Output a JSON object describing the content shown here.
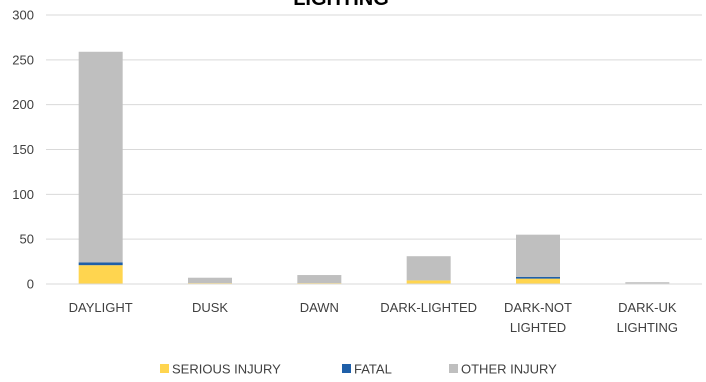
{
  "chart_data": {
    "type": "bar",
    "stacked": true,
    "title": "LIGHTING",
    "categories": [
      [
        "DAYLIGHT"
      ],
      [
        "DUSK"
      ],
      [
        "DAWN"
      ],
      [
        "DARK-LIGHTED"
      ],
      [
        "DARK-NOT",
        "LIGHTED"
      ],
      [
        "DARK-UK",
        "LIGHTING"
      ]
    ],
    "series": [
      {
        "name": "SERIOUS INJURY",
        "color": "#FFD54F",
        "values": [
          21,
          1,
          1,
          4,
          6,
          0
        ]
      },
      {
        "name": "FATAL",
        "color": "#1F5FA8",
        "values": [
          3,
          0,
          0,
          0,
          2,
          0
        ]
      },
      {
        "name": "OTHER INJURY",
        "color": "#BFBFBF",
        "values": [
          235,
          6,
          9,
          27,
          47,
          2
        ]
      }
    ],
    "ylim": [
      0,
      300
    ],
    "yticks": [
      0,
      50,
      100,
      150,
      200,
      250,
      300
    ],
    "grid": true,
    "legend_position": "bottom"
  }
}
